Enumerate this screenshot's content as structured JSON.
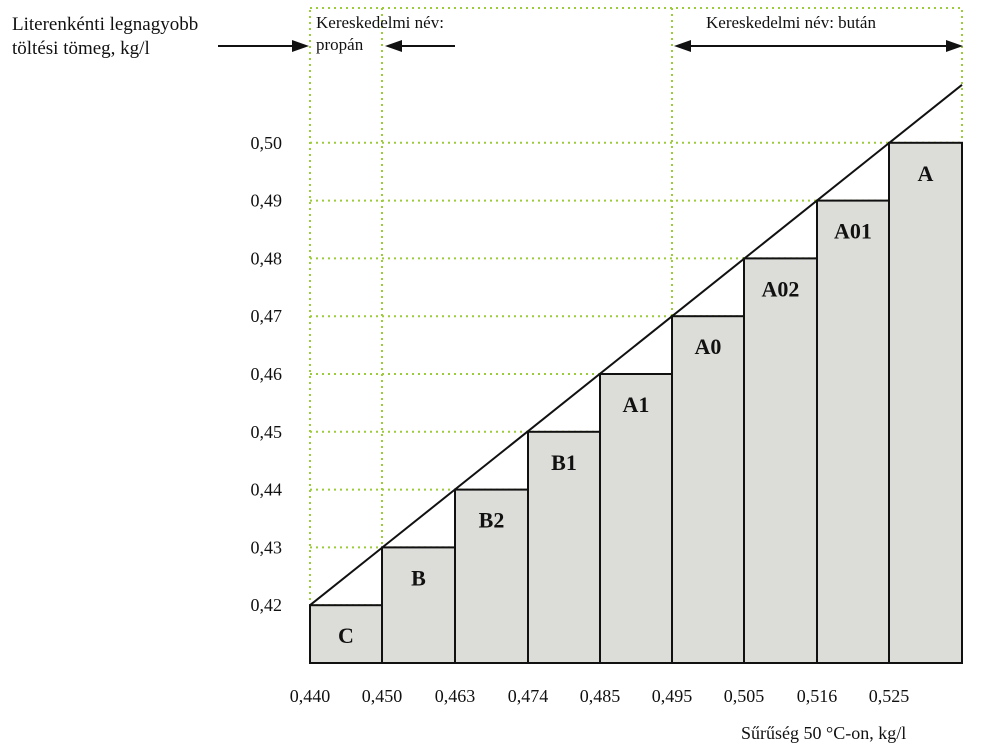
{
  "chart_data": {
    "type": "bar",
    "ylabel_lines": [
      "Literenkénti legnagyobb",
      "töltési tömeg, kg/l"
    ],
    "xlabel": "Sűrűség 50 °C-on, kg/l",
    "region_propane": [
      "Kereskedelmi név:",
      "propán"
    ],
    "region_butane": "Kereskedelmi név: bután",
    "x_ticks": [
      "0,440",
      "0,450",
      "0,463",
      "0,474",
      "0,485",
      "0,495",
      "0,505",
      "0,516",
      "0,525"
    ],
    "y_ticks": [
      "0,42",
      "0,43",
      "0,44",
      "0,45",
      "0,46",
      "0,47",
      "0,48",
      "0,49",
      "0,50"
    ],
    "ylim": [
      0.41,
      0.51
    ],
    "grid": true,
    "bars": [
      {
        "label": "C",
        "x_from": "0,440",
        "x_to": "0,450",
        "value": 0.42
      },
      {
        "label": "B",
        "x_from": "0,450",
        "x_to": "0,463",
        "value": 0.43
      },
      {
        "label": "B2",
        "x_from": "0,463",
        "x_to": "0,474",
        "value": 0.44
      },
      {
        "label": "B1",
        "x_from": "0,474",
        "x_to": "0,485",
        "value": 0.45
      },
      {
        "label": "A1",
        "x_from": "0,485",
        "x_to": "0,495",
        "value": 0.46
      },
      {
        "label": "A0",
        "x_from": "0,495",
        "x_to": "0,505",
        "value": 0.47
      },
      {
        "label": "A02",
        "x_from": "0,505",
        "x_to": "0,516",
        "value": 0.48
      },
      {
        "label": "A01",
        "x_from": "0,516",
        "x_to": "0,525",
        "value": 0.49
      },
      {
        "label": "A",
        "x_from": "0,525",
        "x_to": "",
        "value": 0.5
      }
    ],
    "colors": {
      "bar_fill": "#dcdcd8",
      "grid": "#9ccc3a",
      "line": "#111111"
    }
  }
}
